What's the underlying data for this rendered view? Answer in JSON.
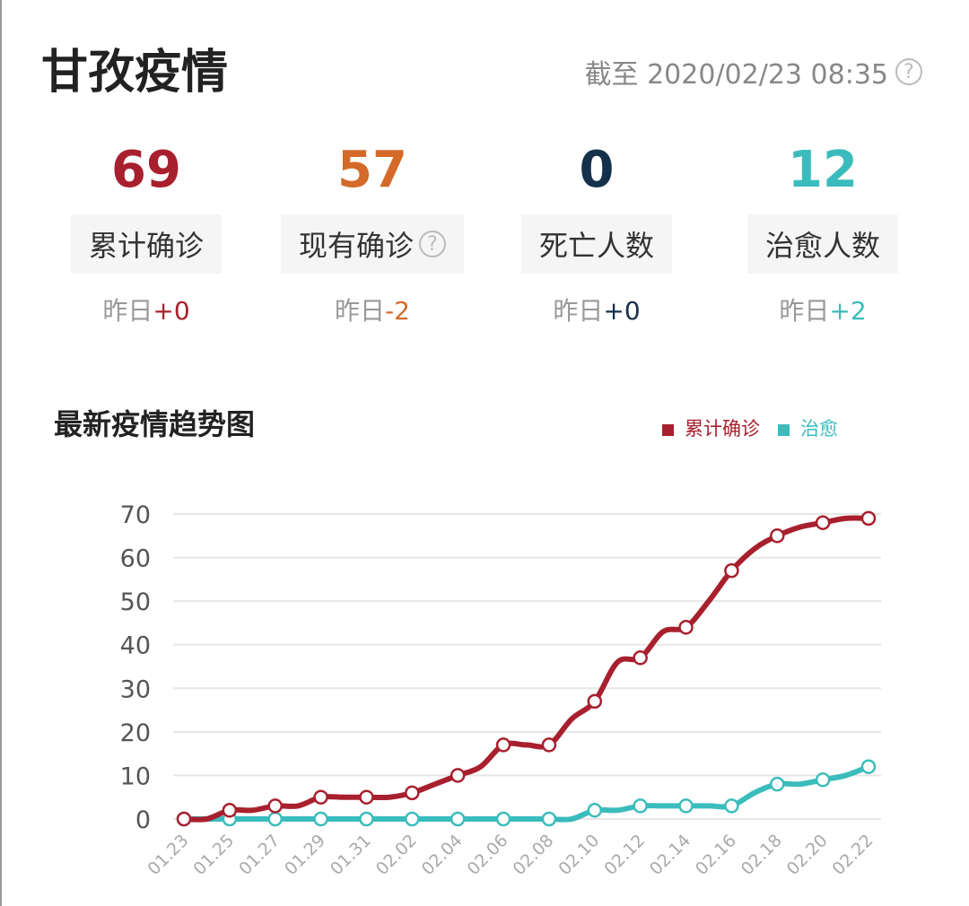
{
  "header": {
    "title": "甘孜疫情",
    "timestamp": "截至 2020/02/23 08:35",
    "help_icon": "question-circle-icon"
  },
  "stats": [
    {
      "value": "69",
      "label": "累计确诊",
      "yesterday_prefix": "昨日",
      "yesterday_delta": "+0",
      "color": "#a8202e",
      "help": false
    },
    {
      "value": "57",
      "label": "现有确诊",
      "yesterday_prefix": "昨日",
      "yesterday_delta": "-2",
      "color": "#d46a2a",
      "help": true
    },
    {
      "value": "0",
      "label": "死亡人数",
      "yesterday_prefix": "昨日",
      "yesterday_delta": "+0",
      "color": "#15304a",
      "help": false
    },
    {
      "value": "12",
      "label": "治愈人数",
      "yesterday_prefix": "昨日",
      "yesterday_delta": "+2",
      "color": "#3bbcbc",
      "help": false
    }
  ],
  "chart_title": "最新疫情趋势图",
  "chart_data": {
    "type": "line",
    "x": [
      "01.23",
      "01.24",
      "01.25",
      "01.26",
      "01.27",
      "01.28",
      "01.29",
      "01.30",
      "01.31",
      "02.01",
      "02.02",
      "02.03",
      "02.04",
      "02.05",
      "02.06",
      "02.07",
      "02.08",
      "02.09",
      "02.10",
      "02.11",
      "02.12",
      "02.13",
      "02.14",
      "02.15",
      "02.16",
      "02.17",
      "02.18",
      "02.19",
      "02.20",
      "02.21",
      "02.22"
    ],
    "x_tick_labels": [
      "01.23",
      "01.25",
      "01.27",
      "01.29",
      "01.31",
      "02.02",
      "02.04",
      "02.06",
      "02.08",
      "02.10",
      "02.12",
      "02.14",
      "02.16",
      "02.18",
      "02.20",
      "02.22"
    ],
    "series": [
      {
        "name": "累计确诊",
        "color": "#a8202e",
        "values": [
          0,
          0,
          2,
          2,
          3,
          3,
          5,
          5,
          5,
          5,
          6,
          8,
          10,
          12,
          17,
          17,
          17,
          23,
          27,
          36,
          37,
          43,
          44,
          50,
          57,
          62,
          65,
          67,
          68,
          69,
          69
        ]
      },
      {
        "name": "治愈",
        "color": "#3bbcbc",
        "values": [
          0,
          0,
          0,
          0,
          0,
          0,
          0,
          0,
          0,
          0,
          0,
          0,
          0,
          0,
          0,
          0,
          0,
          0,
          2,
          2,
          3,
          3,
          3,
          3,
          3,
          6,
          8,
          8,
          9,
          10,
          12
        ]
      }
    ],
    "ylim": [
      0,
      70
    ],
    "y_ticks": [
      0,
      10,
      20,
      30,
      40,
      50,
      60,
      70
    ],
    "grid": true,
    "legend": "top-right"
  }
}
